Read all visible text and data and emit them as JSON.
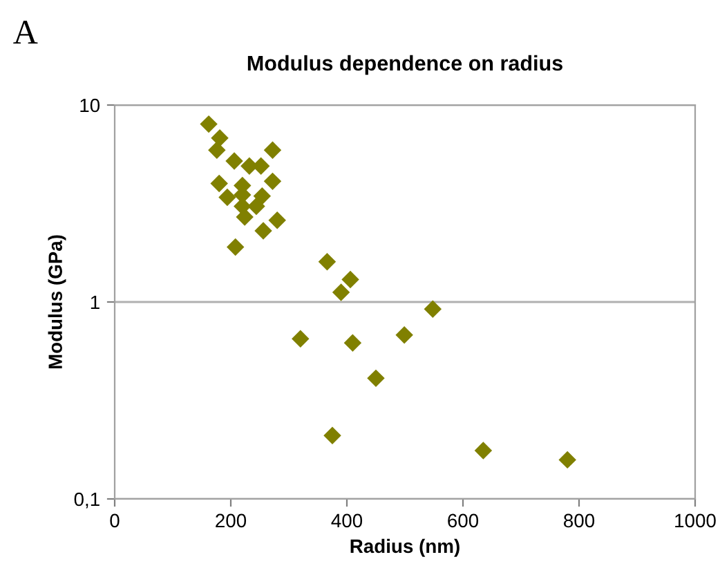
{
  "chart_data": {
    "type": "scatter",
    "title": "Modulus dependence on radius",
    "xlabel": "Radius (nm)",
    "ylabel": "Modulus (GPa)",
    "annotations": [
      "A"
    ],
    "x": [
      162,
      181,
      176,
      272,
      206,
      232,
      252,
      180,
      272,
      220,
      194,
      220,
      254,
      220,
      244,
      224,
      280,
      256,
      208,
      366,
      406,
      390,
      548,
      635,
      780,
      499,
      320,
      410,
      450,
      375
    ],
    "values": [
      8,
      6.8,
      5.9,
      5.9,
      5.2,
      4.9,
      4.9,
      4.0,
      4.1,
      3.9,
      3.4,
      3.5,
      3.45,
      3.06,
      3.06,
      2.7,
      2.6,
      2.3,
      1.9,
      1.6,
      1.3,
      1.12,
      0.92,
      0.176,
      0.158,
      0.68,
      0.65,
      0.62,
      0.41,
      0.21
    ],
    "color": "#808000",
    "marker": "diamond",
    "log": "y",
    "xlim": [
      0,
      1000
    ],
    "xticks": [
      0,
      200,
      400,
      600,
      800,
      1000
    ],
    "ylim": [
      0.1,
      10
    ],
    "yticks": [
      {
        "value": 0.1,
        "label": "0,1"
      },
      1,
      10
    ],
    "grid": "y"
  }
}
